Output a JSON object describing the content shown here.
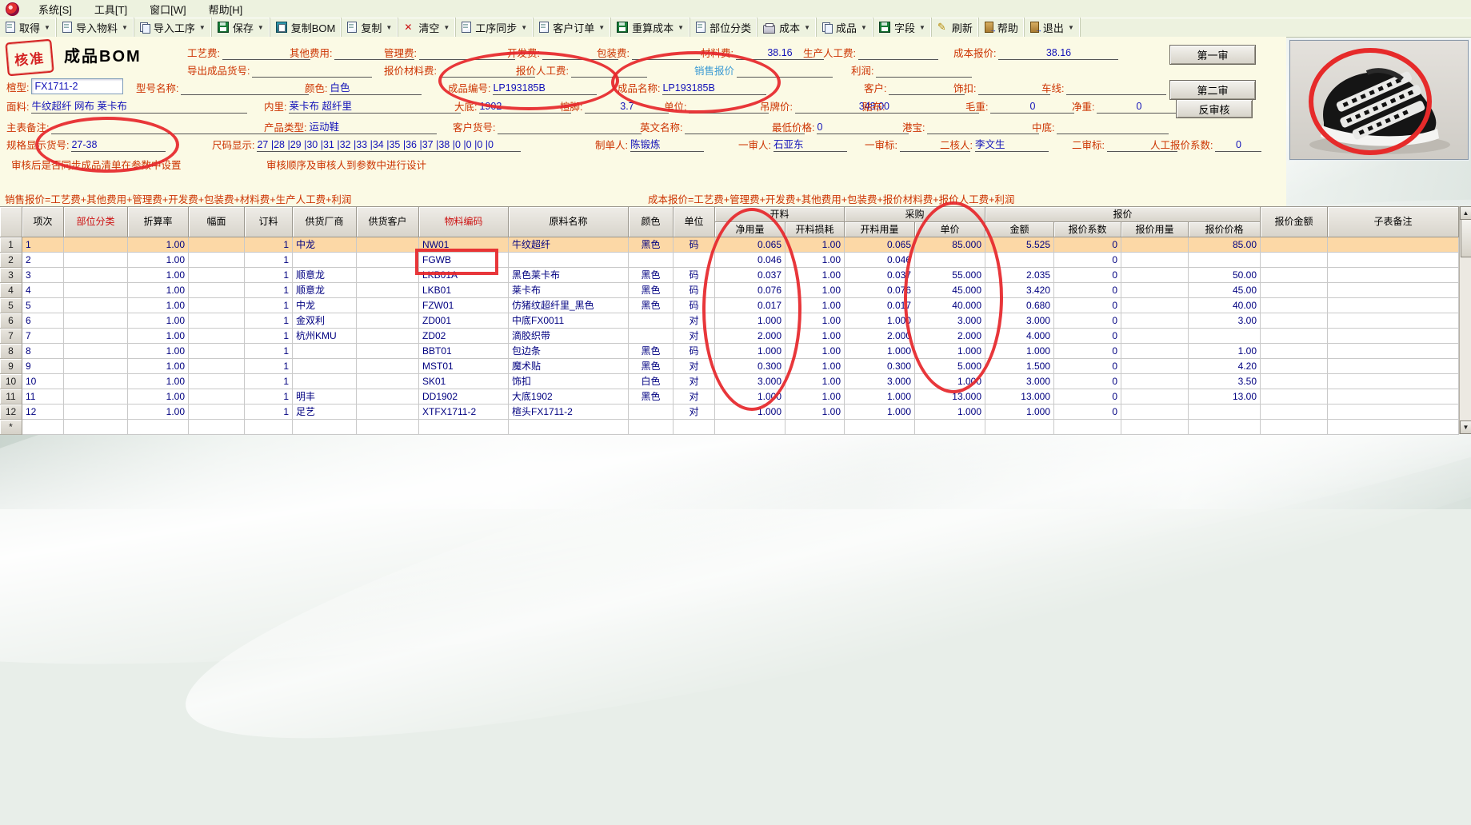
{
  "menu": {
    "items": [
      "系统[S]",
      "工具[T]",
      "窗口[W]",
      "帮助[H]"
    ]
  },
  "toolbar": {
    "buttons": [
      {
        "label": "取得",
        "icon": "page-icon",
        "dropdown": true
      },
      {
        "label": "导入物料",
        "icon": "page-icon",
        "dropdown": true
      },
      {
        "label": "导入工序",
        "icon": "copy-pages-icon",
        "dropdown": true
      },
      {
        "label": "保存",
        "icon": "floppy-icon",
        "dropdown": true
      },
      {
        "label": "复制BOM",
        "icon": "clipboard-icon",
        "dropdown": false
      },
      {
        "label": "复制",
        "icon": "page-icon",
        "dropdown": true
      },
      {
        "label": "清空",
        "icon": "x-icon",
        "dropdown": true
      },
      {
        "label": "工序同步",
        "icon": "page-icon",
        "dropdown": true
      },
      {
        "label": "客户订单",
        "icon": "page-icon",
        "dropdown": true
      },
      {
        "label": "重算成本",
        "icon": "floppy-icon",
        "dropdown": true
      },
      {
        "label": "部位分类",
        "icon": "page-icon",
        "dropdown": false
      },
      {
        "label": "成本",
        "icon": "printer-icon",
        "dropdown": true
      },
      {
        "label": "成品",
        "icon": "copy-pages-icon",
        "dropdown": true
      },
      {
        "label": "字段",
        "icon": "floppy-icon",
        "dropdown": true
      },
      {
        "label": "刷新",
        "icon": "pencil-icon",
        "dropdown": false
      },
      {
        "label": "帮助",
        "icon": "door-icon",
        "dropdown": false
      },
      {
        "label": "退出",
        "icon": "door-icon",
        "dropdown": true
      }
    ]
  },
  "header": {
    "stamp": "核准",
    "title": "成品BOM",
    "buttons": {
      "first_audit": "第一审",
      "second_audit": "第二审",
      "reverse_audit": "反审核"
    },
    "fields": {
      "gongyifei": {
        "label": "工艺费:",
        "value": ""
      },
      "qitafeiyong": {
        "label": "其他费用:",
        "value": ""
      },
      "guanlifei": {
        "label": "管理费:",
        "value": ""
      },
      "kaifafei": {
        "label": "开发费:",
        "value": ""
      },
      "baozhuangfei": {
        "label": "包装费:",
        "value": ""
      },
      "cailiaofei": {
        "label": "材料费:",
        "value": "38.16"
      },
      "shengchanrengong": {
        "label": "生产人工费:",
        "value": ""
      },
      "chengbenbaojia": {
        "label": "成本报价:",
        "value": "38.16"
      },
      "daochuhuohao": {
        "label": "导出成品货号:",
        "value": ""
      },
      "baojiacailiaofei": {
        "label": "报价材料费:",
        "value": ""
      },
      "baojiarengongfei": {
        "label": "报价人工费:",
        "value": ""
      },
      "xiaoshoubaojia": {
        "label": "销售报价",
        "value": ""
      },
      "lirun": {
        "label": "利润:",
        "value": ""
      },
      "xuanxing": {
        "label": "楦型:",
        "value": "FX1711-2"
      },
      "xinghao": {
        "label": "型号名称:",
        "value": ""
      },
      "yanse": {
        "label": "颜色:",
        "value": "白色"
      },
      "chengpinbianhao": {
        "label": "成品编号:",
        "value": "LP193185B"
      },
      "chengpinmingcheng": {
        "label": "成品名称:",
        "value": "LP193185B"
      },
      "kehu": {
        "label": "客户:",
        "value": ""
      },
      "shikou": {
        "label": "饰扣:",
        "value": ""
      },
      "chexian": {
        "label": "车线:",
        "value": ""
      },
      "mianliao": {
        "label": "面料:",
        "value": "牛纹超纤 网布 莱卡布"
      },
      "neili": {
        "label": "内里:",
        "value": "莱卡布 超纤里"
      },
      "dadi": {
        "label": "大底:",
        "value": "1902"
      },
      "xuanjiao": {
        "label": "楦脚:",
        "value": "3.7"
      },
      "danwei": {
        "label": "单位:",
        "value": ""
      },
      "diaopaijia": {
        "label": "吊牌价:",
        "value": "348.00"
      },
      "tiebu": {
        "label": "贴布:",
        "value": ""
      },
      "maozhong": {
        "label": "毛重:",
        "value": "0"
      },
      "jingzhong": {
        "label": "净重:",
        "value": "0"
      },
      "zhubiaobeizhu": {
        "label": "主表备注:",
        "value": ""
      },
      "chanpinleixing": {
        "label": "产品类型:",
        "value": "运动鞋"
      },
      "kehuhuohao": {
        "label": "客户货号:",
        "value": ""
      },
      "yingwen": {
        "label": "英文名称:",
        "value": ""
      },
      "zuidijiage": {
        "label": "最低价格:",
        "value": "0"
      },
      "gangbao": {
        "label": "港宝:",
        "value": ""
      },
      "zhongdi": {
        "label": "中底:",
        "value": ""
      },
      "guige": {
        "label": "规格显示货号:",
        "value": "27-38"
      },
      "chima": {
        "label": "尺码显示:",
        "value": "27 |28 |29 |30 |31 |32 |33 |34 |35 |36 |37 |38 |0 |0 |0 |0"
      },
      "zhidanren": {
        "label": "制单人:",
        "value": "陈锻炼"
      },
      "yishenren": {
        "label": "一审人:",
        "value": "石亚东"
      },
      "yishenbiao": {
        "label": "一审标:",
        "value": ""
      },
      "erheren": {
        "label": "二核人:",
        "value": "李文生"
      },
      "ershenbiao": {
        "label": "二审标:",
        "value": ""
      },
      "rengongxishu": {
        "label": "人工报价系数:",
        "value": "0"
      }
    },
    "notes": {
      "sync_note": "审核后是否同步成品清单在参数中设置",
      "order_note": "审核顺序及审核人到参数中进行设计"
    },
    "formulas": {
      "sales": "销售报价=工艺费+其他费用+管理费+开发费+包装费+材料费+生产人工费+利润",
      "cost": "成本报价=工艺费+管理费+开发费+其他费用+包装费+报价材料费+报价人工费+利润"
    }
  },
  "table": {
    "groups": {
      "cutting": "开料",
      "purchase": "采购",
      "quote": "报价"
    },
    "columns": [
      "项次",
      "部位分类",
      "折算率",
      "幅面",
      "订料",
      "供货厂商",
      "供货客户",
      "物料编码",
      "原料名称",
      "颜色",
      "单位",
      "净用量",
      "开料损耗",
      "开料用量",
      "单价",
      "金额",
      "报价系数",
      "报价用量",
      "报价价格",
      "报价金额",
      "子表备注"
    ],
    "rows": [
      [
        "1",
        "",
        "1.00",
        "",
        "1",
        "中龙",
        "",
        "NW01",
        "牛纹超纤",
        "黑色",
        "码",
        "0.065",
        "1.00",
        "0.065",
        "85.000",
        "5.525",
        "0",
        "",
        "85.00",
        "",
        ""
      ],
      [
        "2",
        "",
        "1.00",
        "",
        "1",
        "",
        "",
        "FGWB",
        "",
        "",
        "",
        "0.046",
        "1.00",
        "0.046",
        "",
        "",
        "0",
        "",
        "",
        "",
        ""
      ],
      [
        "3",
        "",
        "1.00",
        "",
        "1",
        "顺意龙",
        "",
        "LKB01A",
        "黑色莱卡布",
        "黑色",
        "码",
        "0.037",
        "1.00",
        "0.037",
        "55.000",
        "2.035",
        "0",
        "",
        "50.00",
        "",
        ""
      ],
      [
        "4",
        "",
        "1.00",
        "",
        "1",
        "顺意龙",
        "",
        "LKB01",
        "莱卡布",
        "黑色",
        "码",
        "0.076",
        "1.00",
        "0.076",
        "45.000",
        "3.420",
        "0",
        "",
        "45.00",
        "",
        ""
      ],
      [
        "5",
        "",
        "1.00",
        "",
        "1",
        "中龙",
        "",
        "FZW01",
        "仿猪纹超纤里_黑色",
        "黑色",
        "码",
        "0.017",
        "1.00",
        "0.017",
        "40.000",
        "0.680",
        "0",
        "",
        "40.00",
        "",
        ""
      ],
      [
        "6",
        "",
        "1.00",
        "",
        "1",
        "金双利",
        "",
        "ZD001",
        "中底FX0011",
        "",
        "对",
        "1.000",
        "1.00",
        "1.000",
        "3.000",
        "3.000",
        "0",
        "",
        "3.00",
        "",
        ""
      ],
      [
        "7",
        "",
        "1.00",
        "",
        "1",
        "杭州KMU",
        "",
        "ZD02",
        "滴胶织带",
        "",
        "对",
        "2.000",
        "1.00",
        "2.000",
        "2.000",
        "4.000",
        "0",
        "",
        "",
        "",
        ""
      ],
      [
        "8",
        "",
        "1.00",
        "",
        "1",
        "",
        "",
        "BBT01",
        "包边条",
        "黑色",
        "码",
        "1.000",
        "1.00",
        "1.000",
        "1.000",
        "1.000",
        "0",
        "",
        "1.00",
        "",
        ""
      ],
      [
        "9",
        "",
        "1.00",
        "",
        "1",
        "",
        "",
        "MST01",
        "魔术贴",
        "黑色",
        "对",
        "0.300",
        "1.00",
        "0.300",
        "5.000",
        "1.500",
        "0",
        "",
        "4.20",
        "",
        ""
      ],
      [
        "10",
        "",
        "1.00",
        "",
        "1",
        "",
        "",
        "SK01",
        "饰扣",
        "白色",
        "对",
        "3.000",
        "1.00",
        "3.000",
        "1.000",
        "3.000",
        "0",
        "",
        "3.50",
        "",
        ""
      ],
      [
        "11",
        "",
        "1.00",
        "",
        "1",
        "明丰",
        "",
        "DD1902",
        "大底1902",
        "黑色",
        "对",
        "1.000",
        "1.00",
        "1.000",
        "13.000",
        "13.000",
        "0",
        "",
        "13.00",
        "",
        ""
      ],
      [
        "12",
        "",
        "1.00",
        "",
        "1",
        "足艺",
        "",
        "XTFX1711-2",
        "楦头FX1711-2",
        "",
        "对",
        "1.000",
        "1.00",
        "1.000",
        "1.000",
        "1.000",
        "0",
        "",
        "",
        "",
        ""
      ]
    ],
    "star": "*"
  }
}
